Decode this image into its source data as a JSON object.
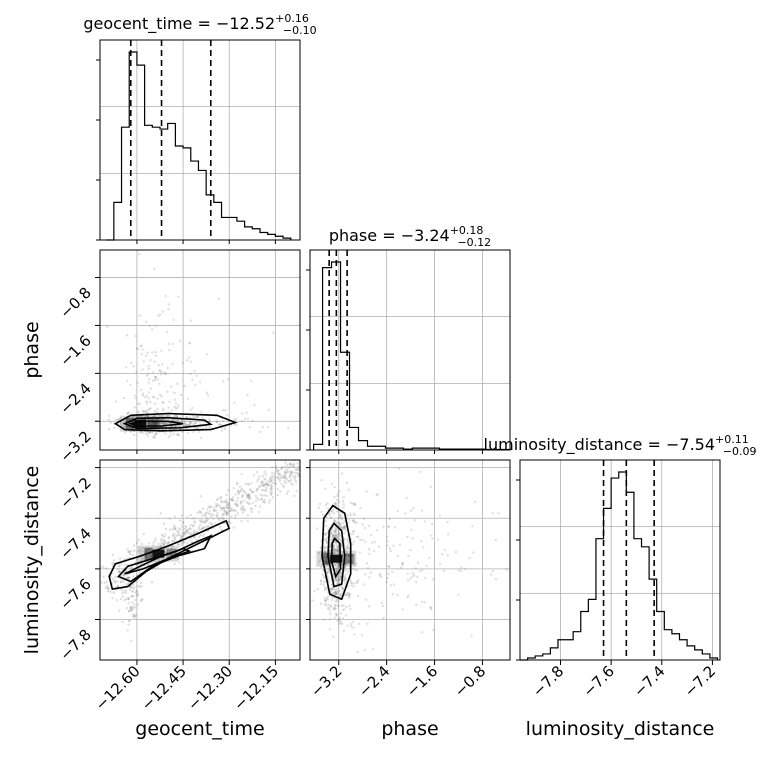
{
  "chart_data": {
    "type": "corner",
    "parameters": [
      "geocent_time",
      "phase",
      "luminosity_distance"
    ],
    "axes": {
      "geocent_time": {
        "range": [
          -12.72,
          -12.07
        ],
        "ticks": [
          -12.6,
          -12.45,
          -12.3,
          -12.15
        ],
        "tick_labels": [
          "−12.60",
          "−12.45",
          "−12.30",
          "−12.15"
        ]
      },
      "phase": {
        "range": [
          -3.68,
          -0.34
        ],
        "ticks": [
          -3.2,
          -2.4,
          -1.6,
          -0.8
        ],
        "tick_labels": [
          "−3.2",
          "−2.4",
          "−1.6",
          "−0.8"
        ]
      },
      "luminosity_distance": {
        "range": [
          -7.96,
          -7.17
        ],
        "ticks": [
          -7.8,
          -7.6,
          -7.4,
          -7.2
        ],
        "tick_labels": [
          "−7.8",
          "−7.6",
          "−7.4",
          "−7.2"
        ]
      }
    },
    "titles": [
      {
        "param": "geocent_time",
        "prefix": "geocent_time = ",
        "value": "−12.52",
        "plus": "+0.16",
        "minus": "−0.10"
      },
      {
        "param": "phase",
        "prefix": "phase = ",
        "value": "−3.24",
        "plus": "+0.18",
        "minus": "−0.12"
      },
      {
        "param": "luminosity_distance",
        "prefix": "luminosity_distance = ",
        "value": "−7.54",
        "plus": "+0.11",
        "minus": "−0.09"
      }
    ],
    "histograms": {
      "geocent_time": {
        "bin_edges": [
          -12.7,
          -12.675,
          -12.65,
          -12.625,
          -12.6,
          -12.575,
          -12.55,
          -12.525,
          -12.5,
          -12.475,
          -12.45,
          -12.425,
          -12.4,
          -12.375,
          -12.35,
          -12.325,
          -12.3,
          -12.275,
          -12.25,
          -12.225,
          -12.2,
          -12.175,
          -12.15,
          -12.125,
          -12.1
        ],
        "counts": [
          0.0,
          0.2,
          0.6,
          1.0,
          0.93,
          0.61,
          0.6,
          0.59,
          0.62,
          0.5,
          0.49,
          0.42,
          0.37,
          0.24,
          0.2,
          0.12,
          0.12,
          0.1,
          0.07,
          0.06,
          0.04,
          0.03,
          0.02,
          0.01
        ],
        "quantiles": [
          -12.62,
          -12.52,
          -12.36
        ]
      },
      "phase": {
        "bin_edges": [
          -3.62,
          -3.47,
          -3.32,
          -3.17,
          -3.02,
          -2.87,
          -2.72,
          -2.57,
          -2.42,
          -2.27,
          -2.12,
          -1.97,
          -1.82,
          -1.67,
          -1.52,
          -1.37,
          -1.22,
          -1.07,
          -0.92,
          -0.77,
          -0.62,
          -0.47,
          -0.32
        ],
        "counts": [
          0.03,
          0.97,
          1.0,
          0.52,
          0.12,
          0.05,
          0.02,
          0.02,
          0.01,
          0.01,
          0.005,
          0.01,
          0.01,
          0.01,
          0.005,
          0.005,
          0.005,
          0.005,
          0.005,
          0.003,
          0.003,
          0.003
        ],
        "quantiles": [
          -3.36,
          -3.24,
          -3.06
        ]
      },
      "luminosity_distance": {
        "bin_edges": [
          -7.96,
          -7.93,
          -7.9,
          -7.87,
          -7.84,
          -7.81,
          -7.78,
          -7.75,
          -7.72,
          -7.69,
          -7.66,
          -7.63,
          -7.6,
          -7.57,
          -7.54,
          -7.51,
          -7.48,
          -7.45,
          -7.42,
          -7.39,
          -7.36,
          -7.33,
          -7.3,
          -7.27,
          -7.24,
          -7.21,
          -7.18
        ],
        "counts": [
          0.0,
          0.01,
          0.02,
          0.03,
          0.06,
          0.1,
          0.1,
          0.14,
          0.24,
          0.3,
          0.6,
          0.75,
          0.9,
          0.93,
          0.83,
          0.6,
          0.56,
          0.4,
          0.24,
          0.15,
          0.13,
          0.1,
          0.07,
          0.05,
          0.03,
          0.01
        ],
        "quantiles": [
          -7.63,
          -7.54,
          -7.43
        ]
      }
    },
    "joint": {
      "phase_vs_geocent_time": {
        "x": "geocent_time",
        "y": "phase",
        "mode": [
          -12.59,
          -3.24
        ],
        "contours": [
          [
            [
              -12.67,
              -3.24
            ],
            [
              -12.62,
              -3.1
            ],
            [
              -12.5,
              -3.07
            ],
            [
              -12.34,
              -3.1
            ],
            [
              -12.28,
              -3.22
            ],
            [
              -12.36,
              -3.34
            ],
            [
              -12.52,
              -3.36
            ],
            [
              -12.64,
              -3.34
            ]
          ],
          [
            [
              -12.64,
              -3.24
            ],
            [
              -12.6,
              -3.15
            ],
            [
              -12.5,
              -3.14
            ],
            [
              -12.38,
              -3.18
            ],
            [
              -12.36,
              -3.25
            ],
            [
              -12.46,
              -3.31
            ],
            [
              -12.6,
              -3.32
            ]
          ],
          [
            [
              -12.62,
              -3.24
            ],
            [
              -12.58,
              -3.2
            ],
            [
              -12.5,
              -3.2
            ],
            [
              -12.45,
              -3.24
            ],
            [
              -12.52,
              -3.28
            ],
            [
              -12.6,
              -3.28
            ]
          ]
        ]
      },
      "luminosity_distance_vs_geocent_time": {
        "x": "geocent_time",
        "y": "luminosity_distance",
        "mode": [
          -12.53,
          -7.54
        ],
        "contours": [
          [
            [
              -12.69,
              -7.63
            ],
            [
              -12.67,
              -7.58
            ],
            [
              -12.59,
              -7.55
            ],
            [
              -12.5,
              -7.51
            ],
            [
              -12.4,
              -7.46
            ],
            [
              -12.31,
              -7.41
            ],
            [
              -12.3,
              -7.44
            ],
            [
              -12.4,
              -7.5
            ],
            [
              -12.5,
              -7.56
            ],
            [
              -12.57,
              -7.61
            ],
            [
              -12.63,
              -7.67
            ],
            [
              -12.68,
              -7.68
            ]
          ],
          [
            [
              -12.66,
              -7.63
            ],
            [
              -12.63,
              -7.59
            ],
            [
              -12.55,
              -7.56
            ],
            [
              -12.47,
              -7.53
            ],
            [
              -12.4,
              -7.49
            ],
            [
              -12.36,
              -7.47
            ],
            [
              -12.38,
              -7.52
            ],
            [
              -12.47,
              -7.55
            ],
            [
              -12.55,
              -7.59
            ],
            [
              -12.62,
              -7.65
            ]
          ],
          [
            [
              -12.64,
              -7.62
            ],
            [
              -12.59,
              -7.59
            ],
            [
              -12.52,
              -7.55
            ],
            [
              -12.45,
              -7.52
            ],
            [
              -12.43,
              -7.53
            ],
            [
              -12.5,
              -7.56
            ],
            [
              -12.58,
              -7.6
            ]
          ]
        ]
      },
      "luminosity_distance_vs_phase": {
        "x": "phase",
        "y": "luminosity_distance",
        "mode": [
          -3.24,
          -7.56
        ],
        "contours": [
          [
            [
              -3.3,
              -7.35
            ],
            [
              -3.1,
              -7.38
            ],
            [
              -3.0,
              -7.5
            ],
            [
              -3.0,
              -7.62
            ],
            [
              -3.15,
              -7.72
            ],
            [
              -3.35,
              -7.7
            ],
            [
              -3.48,
              -7.55
            ],
            [
              -3.45,
              -7.4
            ]
          ],
          [
            [
              -3.28,
              -7.42
            ],
            [
              -3.15,
              -7.45
            ],
            [
              -3.1,
              -7.55
            ],
            [
              -3.15,
              -7.66
            ],
            [
              -3.28,
              -7.67
            ],
            [
              -3.38,
              -7.55
            ],
            [
              -3.36,
              -7.45
            ]
          ],
          [
            [
              -3.27,
              -7.48
            ],
            [
              -3.18,
              -7.5
            ],
            [
              -3.17,
              -7.6
            ],
            [
              -3.25,
              -7.63
            ],
            [
              -3.32,
              -7.57
            ],
            [
              -3.31,
              -7.5
            ]
          ]
        ]
      }
    },
    "colors": {
      "line": "#000000",
      "scatter": "#808080",
      "grid": "#b0b0b0",
      "density": "#000000"
    }
  }
}
